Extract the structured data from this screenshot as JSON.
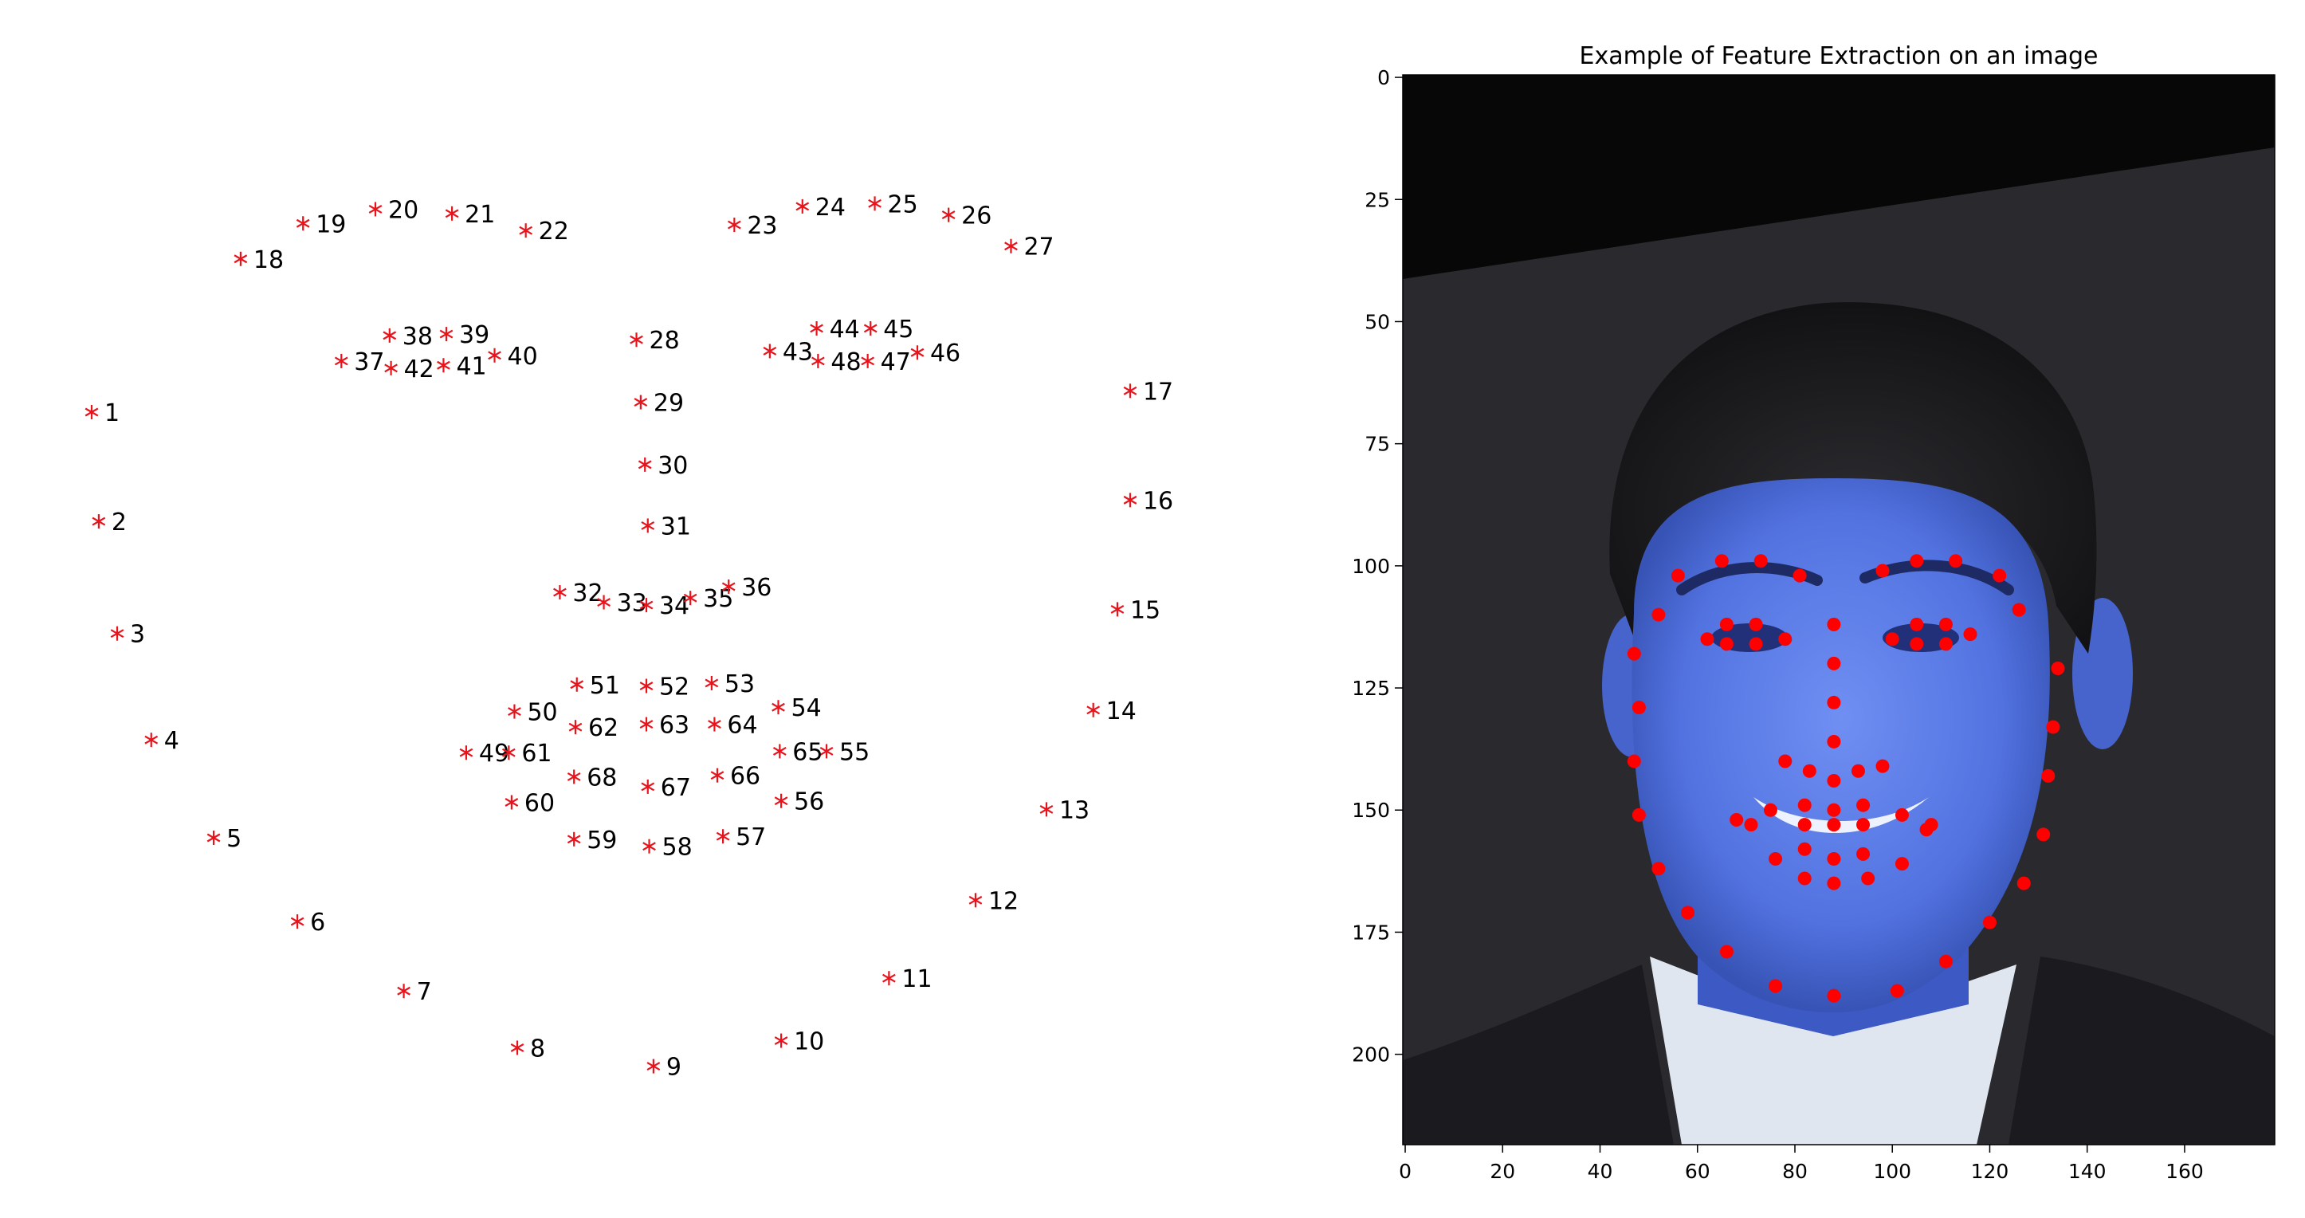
{
  "chart_data": [
    {
      "type": "scatter",
      "title": "",
      "xlabel": "",
      "ylabel": "",
      "marker": "*",
      "marker_color": "#e8131b",
      "grid": false,
      "axes_visible": false,
      "points": [
        {
          "label": "1",
          "x": 0.0,
          "y": -0.0
        },
        {
          "label": "2",
          "x": 0.5,
          "y": -7.7
        },
        {
          "label": "3",
          "x": 1.8,
          "y": -15.6
        },
        {
          "label": "4",
          "x": 4.2,
          "y": -23.1
        },
        {
          "label": "5",
          "x": 8.6,
          "y": -30.0
        },
        {
          "label": "6",
          "x": 14.5,
          "y": -35.9
        },
        {
          "label": "7",
          "x": 22.0,
          "y": -40.8
        },
        {
          "label": "8",
          "x": 30.0,
          "y": -44.8
        },
        {
          "label": "9",
          "x": 39.6,
          "y": -46.1
        },
        {
          "label": "10",
          "x": 48.6,
          "y": -44.3
        },
        {
          "label": "11",
          "x": 56.2,
          "y": -39.9
        },
        {
          "label": "12",
          "x": 62.3,
          "y": -34.4
        },
        {
          "label": "13",
          "x": 67.3,
          "y": -28.0
        },
        {
          "label": "14",
          "x": 70.6,
          "y": -21.0
        },
        {
          "label": "15",
          "x": 72.3,
          "y": -13.9
        },
        {
          "label": "16",
          "x": 73.2,
          "y": -6.2
        },
        {
          "label": "17",
          "x": 73.2,
          "y": 1.5
        },
        {
          "label": "18",
          "x": 10.5,
          "y": 10.8
        },
        {
          "label": "19",
          "x": 14.9,
          "y": 13.3
        },
        {
          "label": "20",
          "x": 20.0,
          "y": 14.3
        },
        {
          "label": "21",
          "x": 25.4,
          "y": 14.0
        },
        {
          "label": "22",
          "x": 30.6,
          "y": 12.8
        },
        {
          "label": "23",
          "x": 45.3,
          "y": 13.2
        },
        {
          "label": "24",
          "x": 50.1,
          "y": 14.5
        },
        {
          "label": "25",
          "x": 55.2,
          "y": 14.7
        },
        {
          "label": "26",
          "x": 60.4,
          "y": 13.9
        },
        {
          "label": "27",
          "x": 64.8,
          "y": 11.7
        },
        {
          "label": "28",
          "x": 38.4,
          "y": 5.1
        },
        {
          "label": "29",
          "x": 38.7,
          "y": 0.7
        },
        {
          "label": "30",
          "x": 39.0,
          "y": -3.7
        },
        {
          "label": "31",
          "x": 39.2,
          "y": -8.0
        },
        {
          "label": "32",
          "x": 33.0,
          "y": -12.7
        },
        {
          "label": "33",
          "x": 36.1,
          "y": -13.4
        },
        {
          "label": "34",
          "x": 39.1,
          "y": -13.6
        },
        {
          "label": "35",
          "x": 42.2,
          "y": -13.1
        },
        {
          "label": "36",
          "x": 44.9,
          "y": -12.3
        },
        {
          "label": "37",
          "x": 17.6,
          "y": 3.6
        },
        {
          "label": "38",
          "x": 21.0,
          "y": 5.4
        },
        {
          "label": "39",
          "x": 25.0,
          "y": 5.5
        },
        {
          "label": "40",
          "x": 28.4,
          "y": 4.0
        },
        {
          "label": "41",
          "x": 24.8,
          "y": 3.3
        },
        {
          "label": "42",
          "x": 21.1,
          "y": 3.1
        },
        {
          "label": "43",
          "x": 47.8,
          "y": 4.3
        },
        {
          "label": "44",
          "x": 51.1,
          "y": 5.9
        },
        {
          "label": "45",
          "x": 54.9,
          "y": 5.9
        },
        {
          "label": "46",
          "x": 58.2,
          "y": 4.2
        },
        {
          "label": "47",
          "x": 54.7,
          "y": 3.6
        },
        {
          "label": "48",
          "x": 51.2,
          "y": 3.6
        },
        {
          "label": "49",
          "x": 26.4,
          "y": -24.0
        },
        {
          "label": "50",
          "x": 29.8,
          "y": -21.1
        },
        {
          "label": "51",
          "x": 34.2,
          "y": -19.2
        },
        {
          "label": "52",
          "x": 39.1,
          "y": -19.3
        },
        {
          "label": "53",
          "x": 43.7,
          "y": -19.1
        },
        {
          "label": "54",
          "x": 48.4,
          "y": -20.8
        },
        {
          "label": "55",
          "x": 51.8,
          "y": -23.9
        },
        {
          "label": "56",
          "x": 48.6,
          "y": -27.4
        },
        {
          "label": "57",
          "x": 44.5,
          "y": -29.9
        },
        {
          "label": "58",
          "x": 39.3,
          "y": -30.6
        },
        {
          "label": "59",
          "x": 34.0,
          "y": -30.1
        },
        {
          "label": "60",
          "x": 29.6,
          "y": -27.5
        },
        {
          "label": "61",
          "x": 29.4,
          "y": -24.0
        },
        {
          "label": "62",
          "x": 34.1,
          "y": -22.2
        },
        {
          "label": "63",
          "x": 39.1,
          "y": -22.0
        },
        {
          "label": "64",
          "x": 43.9,
          "y": -22.0
        },
        {
          "label": "65",
          "x": 48.5,
          "y": -23.9
        },
        {
          "label": "66",
          "x": 44.1,
          "y": -25.6
        },
        {
          "label": "67",
          "x": 39.2,
          "y": -26.4
        },
        {
          "label": "68",
          "x": 34.0,
          "y": -25.7
        }
      ]
    },
    {
      "type": "scatter",
      "title": "Example of Feature Extraction on an image",
      "xlabel": "",
      "ylabel": "",
      "overlay": "image",
      "marker": "o",
      "marker_color": "#ff0000",
      "grid": false,
      "xlim": [
        -0.5,
        178.5
      ],
      "ylim": [
        218.5,
        -0.5
      ],
      "xticks": [
        0,
        20,
        40,
        60,
        80,
        100,
        120,
        140,
        160
      ],
      "yticks": [
        0,
        25,
        50,
        75,
        100,
        125,
        150,
        175,
        200
      ],
      "points": [
        {
          "x": 47,
          "y": 118
        },
        {
          "x": 48,
          "y": 129
        },
        {
          "x": 47,
          "y": 140
        },
        {
          "x": 48,
          "y": 151
        },
        {
          "x": 52,
          "y": 162
        },
        {
          "x": 58,
          "y": 171
        },
        {
          "x": 66,
          "y": 179
        },
        {
          "x": 76,
          "y": 186
        },
        {
          "x": 88,
          "y": 188
        },
        {
          "x": 101,
          "y": 187
        },
        {
          "x": 111,
          "y": 181
        },
        {
          "x": 120,
          "y": 173
        },
        {
          "x": 127,
          "y": 165
        },
        {
          "x": 131,
          "y": 155
        },
        {
          "x": 132,
          "y": 143
        },
        {
          "x": 133,
          "y": 133
        },
        {
          "x": 134,
          "y": 121
        },
        {
          "x": 52,
          "y": 110
        },
        {
          "x": 56,
          "y": 102
        },
        {
          "x": 65,
          "y": 99
        },
        {
          "x": 73,
          "y": 99
        },
        {
          "x": 81,
          "y": 102
        },
        {
          "x": 98,
          "y": 101
        },
        {
          "x": 105,
          "y": 99
        },
        {
          "x": 113,
          "y": 99
        },
        {
          "x": 122,
          "y": 102
        },
        {
          "x": 126,
          "y": 109
        },
        {
          "x": 88,
          "y": 112
        },
        {
          "x": 88,
          "y": 120
        },
        {
          "x": 88,
          "y": 128
        },
        {
          "x": 88,
          "y": 136
        },
        {
          "x": 78,
          "y": 140
        },
        {
          "x": 83,
          "y": 142
        },
        {
          "x": 88,
          "y": 144
        },
        {
          "x": 93,
          "y": 142
        },
        {
          "x": 98,
          "y": 141
        },
        {
          "x": 62,
          "y": 115
        },
        {
          "x": 66,
          "y": 112
        },
        {
          "x": 72,
          "y": 112
        },
        {
          "x": 78,
          "y": 115
        },
        {
          "x": 72,
          "y": 116
        },
        {
          "x": 66,
          "y": 116
        },
        {
          "x": 100,
          "y": 115
        },
        {
          "x": 105,
          "y": 112
        },
        {
          "x": 111,
          "y": 112
        },
        {
          "x": 116,
          "y": 114
        },
        {
          "x": 111,
          "y": 116
        },
        {
          "x": 105,
          "y": 116
        },
        {
          "x": 68,
          "y": 152
        },
        {
          "x": 75,
          "y": 150
        },
        {
          "x": 82,
          "y": 149
        },
        {
          "x": 88,
          "y": 150
        },
        {
          "x": 94,
          "y": 149
        },
        {
          "x": 102,
          "y": 151
        },
        {
          "x": 108,
          "y": 153
        },
        {
          "x": 102,
          "y": 161
        },
        {
          "x": 95,
          "y": 164
        },
        {
          "x": 88,
          "y": 165
        },
        {
          "x": 82,
          "y": 164
        },
        {
          "x": 76,
          "y": 160
        },
        {
          "x": 71,
          "y": 153
        },
        {
          "x": 82,
          "y": 153
        },
        {
          "x": 88,
          "y": 153
        },
        {
          "x": 94,
          "y": 153
        },
        {
          "x": 107,
          "y": 154
        },
        {
          "x": 94,
          "y": 159
        },
        {
          "x": 88,
          "y": 160
        },
        {
          "x": 82,
          "y": 158
        }
      ]
    }
  ]
}
